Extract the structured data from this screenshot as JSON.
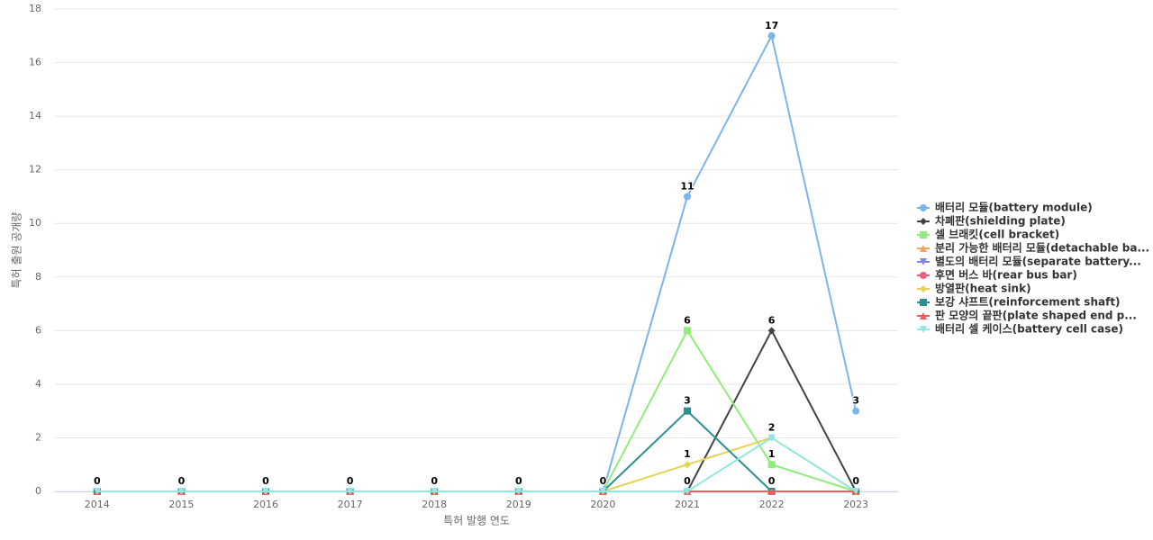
{
  "chart_data": {
    "type": "line",
    "x_label": "특허 발행 연도",
    "y_label": "특허 출원 공개량",
    "categories": [
      "2014",
      "2015",
      "2016",
      "2017",
      "2018",
      "2019",
      "2020",
      "2021",
      "2022",
      "2023"
    ],
    "ylim": [
      0,
      18
    ],
    "yticks": [
      0,
      2,
      4,
      6,
      8,
      10,
      12,
      14,
      16,
      18
    ],
    "grid": true,
    "legend": "right",
    "series": [
      {
        "name": "배터리 모듈(battery module)",
        "color": "#7cb5ec",
        "values": [
          0,
          0,
          0,
          0,
          0,
          0,
          0,
          11,
          17,
          3
        ]
      },
      {
        "name": "차폐판(shielding plate)",
        "color": "#434348",
        "values": [
          0,
          0,
          0,
          0,
          0,
          0,
          0,
          0,
          6,
          0
        ]
      },
      {
        "name": "셀 브래킷(cell bracket)",
        "color": "#90ed7d",
        "values": [
          0,
          0,
          0,
          0,
          0,
          0,
          0,
          6,
          1,
          0
        ]
      },
      {
        "name": "분리 가능한 배터리 모듈(detachable ba...",
        "color": "#f7a35c",
        "values": [
          0,
          0,
          0,
          0,
          0,
          0,
          0,
          0,
          0,
          0
        ]
      },
      {
        "name": "별도의 배터리 모듈(separate battery...",
        "color": "#8085e9",
        "values": [
          0,
          0,
          0,
          0,
          0,
          0,
          0,
          0,
          0,
          0
        ]
      },
      {
        "name": "후면 버스 바(rear bus bar)",
        "color": "#f15c80",
        "values": [
          0,
          0,
          0,
          0,
          0,
          0,
          0,
          0,
          0,
          0
        ]
      },
      {
        "name": "방열판(heat sink)",
        "color": "#e4d354",
        "values": [
          0,
          0,
          0,
          0,
          0,
          0,
          0,
          1,
          2,
          0
        ]
      },
      {
        "name": "보강 샤프트(reinforcement shaft)",
        "color": "#2b908f",
        "values": [
          0,
          0,
          0,
          0,
          0,
          0,
          0,
          3,
          0,
          0
        ]
      },
      {
        "name": "판 모양의 끝판(plate shaped end p...",
        "color": "#f45b5b",
        "values": [
          0,
          0,
          0,
          0,
          0,
          0,
          0,
          0,
          0,
          0
        ]
      },
      {
        "name": "배터리 셀 케이스(battery cell case)",
        "color": "#91e8e1",
        "values": [
          0,
          0,
          0,
          0,
          0,
          0,
          0,
          0,
          2,
          0
        ]
      }
    ]
  }
}
